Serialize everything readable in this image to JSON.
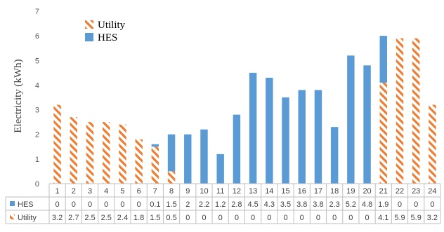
{
  "chart_data": {
    "type": "bar",
    "stacked": true,
    "ylabel": "Electricity (kWh)",
    "ylim": [
      0,
      7
    ],
    "yticks": [
      0,
      1,
      2,
      3,
      4,
      5,
      6,
      7
    ],
    "grid": false,
    "legend_position": "top-left",
    "categories": [
      "1",
      "2",
      "3",
      "4",
      "5",
      "6",
      "7",
      "8",
      "9",
      "10",
      "11",
      "12",
      "13",
      "14",
      "15",
      "16",
      "17",
      "18",
      "19",
      "20",
      "21",
      "22",
      "23",
      "24"
    ],
    "series": [
      {
        "name": "Utility",
        "legend_label": "Utility",
        "table_label": "Utility",
        "color": "#ED7D31",
        "pattern": "diagonal-stripes",
        "values": [
          3.2,
          2.7,
          2.5,
          2.5,
          2.4,
          1.8,
          1.5,
          0.5,
          0,
          0,
          0,
          0,
          0,
          0,
          0,
          0,
          0,
          0,
          0,
          0,
          4.1,
          5.9,
          5.9,
          3.2
        ]
      },
      {
        "name": "HES",
        "legend_label": "HES",
        "table_label": "HES",
        "color": "#5B9BD5",
        "pattern": "solid",
        "values": [
          0,
          0,
          0,
          0,
          0,
          0,
          0.1,
          1.5,
          2,
          2.2,
          1.2,
          2.8,
          4.5,
          4.3,
          3.5,
          3.8,
          3.8,
          2.3,
          5.2,
          4.8,
          1.9,
          0,
          0,
          0
        ]
      }
    ],
    "data_table": true
  }
}
